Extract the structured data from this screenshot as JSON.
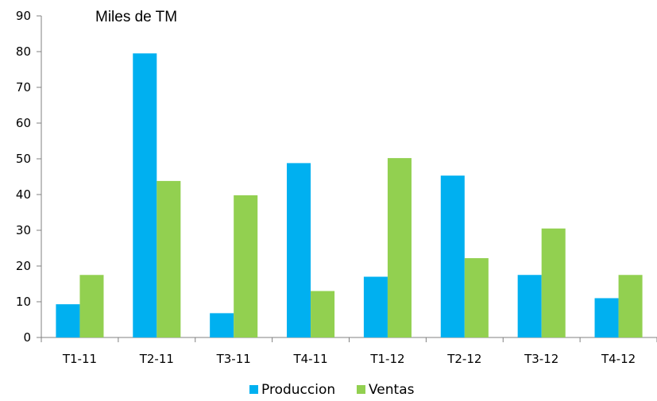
{
  "chart_data": {
    "type": "bar",
    "title": "",
    "unit_label": "Miles de  TM",
    "xlabel": "",
    "ylabel": "",
    "categories": [
      "T1-11",
      "T2-11",
      "T3-11",
      "T4-11",
      "T1-12",
      "T2-12",
      "T3-12",
      "T4-12"
    ],
    "series": [
      {
        "name": "Produccion",
        "color": "#00b0f0",
        "values": [
          9.3,
          79.5,
          6.8,
          48.8,
          17,
          45.3,
          17.5,
          11
        ]
      },
      {
        "name": "Ventas",
        "color": "#92d050",
        "values": [
          17.5,
          43.8,
          39.8,
          13,
          50.2,
          22.2,
          30.5,
          17.5
        ]
      }
    ],
    "ylim": [
      0,
      90
    ],
    "yticks": [
      "0",
      "10",
      "20",
      "30",
      "40",
      "50",
      "60",
      "70",
      "80",
      "90"
    ],
    "grid": false,
    "legend_position": "bottom-center"
  }
}
